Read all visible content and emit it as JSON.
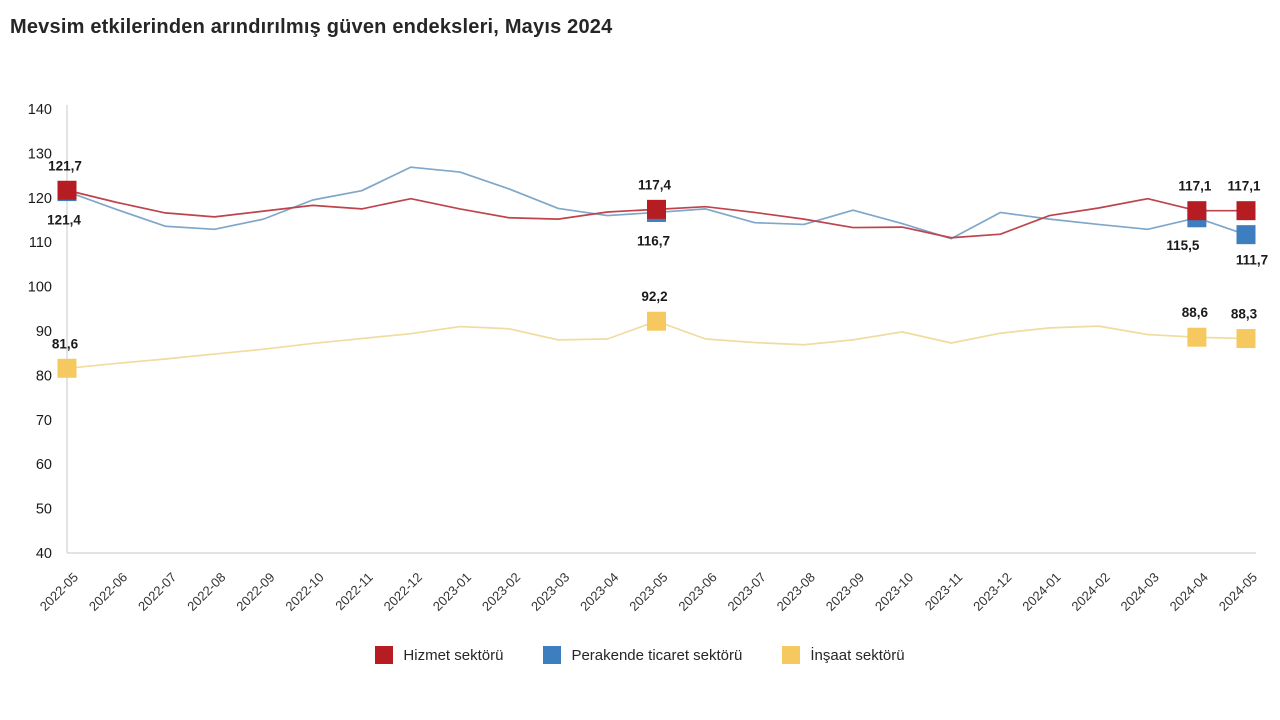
{
  "title": "Mevsim etkilerinden arındırılmış güven endeksleri, Mayıs 2024",
  "chart_data": {
    "type": "line",
    "title": "Mevsim etkilerinden arındırılmış güven endeksleri, Mayıs 2024",
    "xlabel": "",
    "ylabel": "",
    "ylim": [
      40,
      140
    ],
    "ytick_step": 10,
    "grid": false,
    "legend_position": "bottom",
    "axis_color": "#d9d9d9",
    "tick_label_color": "#1a1a1a",
    "data_label_color": "#1a1a1a",
    "x": [
      "2022-05",
      "2022-06",
      "2022-07",
      "2022-08",
      "2022-09",
      "2022-10",
      "2022-11",
      "2022-12",
      "2023-01",
      "2023-02",
      "2023-03",
      "2023-04",
      "2023-05",
      "2023-06",
      "2023-07",
      "2023-08",
      "2023-09",
      "2023-10",
      "2023-11",
      "2023-12",
      "2024-01",
      "2024-02",
      "2024-03",
      "2024-04",
      "2024-05"
    ],
    "series": [
      {
        "name": "Hizmet sektörü",
        "line_color": "#be444c",
        "marker_color": "#b61d23",
        "values": [
          121.7,
          119.0,
          116.6,
          115.7,
          117.0,
          118.3,
          117.5,
          119.8,
          117.5,
          115.5,
          115.2,
          116.8,
          117.4,
          118.0,
          116.7,
          115.2,
          113.3,
          113.4,
          111.0,
          111.8,
          116.0,
          117.7,
          119.8,
          117.1,
          117.1
        ]
      },
      {
        "name": "Perakende ticaret sektörü",
        "line_color": "#7fa7c9",
        "marker_color": "#3d7ebe",
        "values": [
          121.4,
          117.4,
          113.6,
          112.9,
          115.2,
          119.5,
          121.6,
          126.9,
          125.8,
          122.0,
          117.6,
          116.0,
          116.7,
          117.5,
          114.4,
          114.0,
          117.2,
          114.2,
          110.8,
          116.7,
          115.2,
          114.0,
          112.9,
          115.5,
          111.7
        ]
      },
      {
        "name": "İnşaat sektörü",
        "line_color": "#f0dc9e",
        "marker_color": "#f5c95f",
        "values": [
          81.6,
          82.7,
          83.7,
          84.8,
          85.9,
          87.2,
          88.3,
          89.4,
          91.0,
          90.5,
          88.0,
          88.2,
          92.2,
          88.2,
          87.4,
          86.9,
          88.0,
          89.8,
          87.3,
          89.5,
          90.7,
          91.1,
          89.2,
          88.6,
          88.3
        ]
      }
    ],
    "marked_indices": [
      0,
      12,
      23,
      24
    ],
    "annotations": [
      {
        "series": 0,
        "index": 0,
        "label": "121,7",
        "placement": "above"
      },
      {
        "series": 1,
        "index": 0,
        "label": "121,4",
        "placement": "below"
      },
      {
        "series": 2,
        "index": 0,
        "label": "81,6",
        "placement": "above"
      },
      {
        "series": 0,
        "index": 12,
        "label": "117,4",
        "placement": "above"
      },
      {
        "series": 1,
        "index": 12,
        "label": "116,7",
        "placement": "below"
      },
      {
        "series": 2,
        "index": 12,
        "label": "92,2",
        "placement": "above"
      },
      {
        "series": 0,
        "index": 23,
        "label": "117,1",
        "placement": "above"
      },
      {
        "series": 0,
        "index": 24,
        "label": "117,1",
        "placement": "above"
      },
      {
        "series": 1,
        "index": 23,
        "label": "115,5",
        "placement": "below-left"
      },
      {
        "series": 1,
        "index": 24,
        "label": "111,7",
        "placement": "below-right"
      },
      {
        "series": 2,
        "index": 23,
        "label": "88,6",
        "placement": "above"
      },
      {
        "series": 2,
        "index": 24,
        "label": "88,3",
        "placement": "above"
      }
    ]
  },
  "legend": {
    "items": [
      "Hizmet sektörü",
      "Perakende ticaret sektörü",
      "İnşaat sektörü"
    ]
  }
}
